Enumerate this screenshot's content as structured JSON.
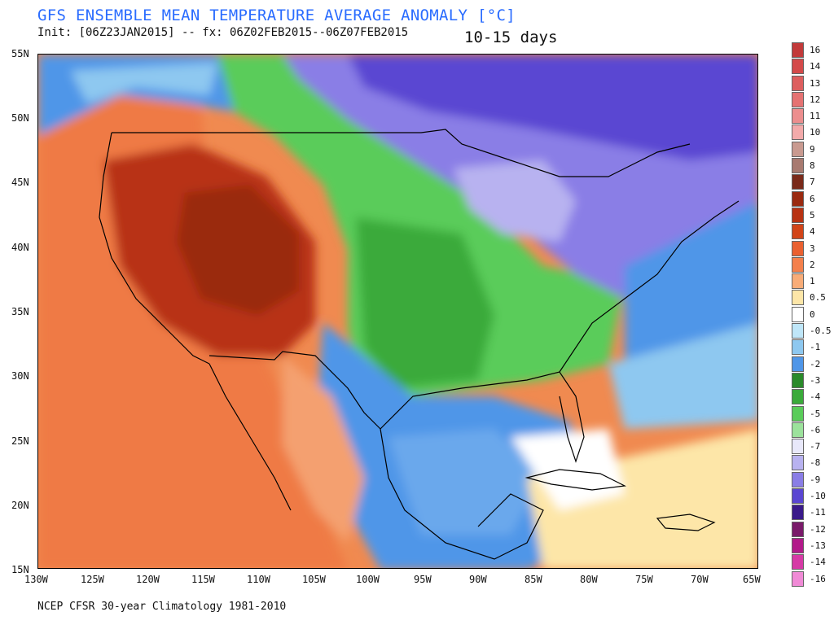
{
  "header": {
    "title": "GFS ENSEMBLE MEAN TEMPERATURE AVERAGE ANOMALY [°C]",
    "subtitle": "Init: [06Z23JAN2015] -- fx: 06Z02FEB2015--06Z07FEB2015",
    "period": "10-15 days"
  },
  "footer": {
    "text": "NCEP CFSR 30-year Climatology 1981-2010"
  },
  "map": {
    "lat_labels": [
      "55N",
      "50N",
      "45N",
      "40N",
      "35N",
      "30N",
      "25N",
      "20N",
      "15N"
    ],
    "lon_labels": [
      "130W",
      "125W",
      "120W",
      "115W",
      "110W",
      "105W",
      "100W",
      "95W",
      "90W",
      "85W",
      "80W",
      "75W",
      "70W",
      "65W"
    ],
    "lat_range": [
      15,
      55
    ],
    "lon_range": [
      -130,
      -65
    ]
  },
  "legend": {
    "items": [
      {
        "label": "16",
        "color": "#c23a3a"
      },
      {
        "label": "14",
        "color": "#d44a4a"
      },
      {
        "label": "13",
        "color": "#dd5e5e"
      },
      {
        "label": "12",
        "color": "#e57272"
      },
      {
        "label": "11",
        "color": "#ec8e8e"
      },
      {
        "label": "10",
        "color": "#f3aaaa"
      },
      {
        "label": "9",
        "color": "#c99a90"
      },
      {
        "label": "8",
        "color": "#a87a70"
      },
      {
        "label": "7",
        "color": "#7a2a1a"
      },
      {
        "label": "6",
        "color": "#9a2a10"
      },
      {
        "label": "5",
        "color": "#b83212"
      },
      {
        "label": "4",
        "color": "#d24418"
      },
      {
        "label": "3",
        "color": "#ea6030"
      },
      {
        "label": "2",
        "color": "#f4804c"
      },
      {
        "label": "1",
        "color": "#f8ac78"
      },
      {
        "label": "0.5",
        "color": "#fde6a8"
      },
      {
        "label": "0",
        "color": "#ffffff"
      },
      {
        "label": "-0.5",
        "color": "#bfe6f8"
      },
      {
        "label": "-1",
        "color": "#8ec8f0"
      },
      {
        "label": "-2",
        "color": "#4f96e8"
      },
      {
        "label": "-3",
        "color": "#2a8a2a"
      },
      {
        "label": "-4",
        "color": "#3aaa3a"
      },
      {
        "label": "-5",
        "color": "#5acc5a"
      },
      {
        "label": "-6",
        "color": "#9ce29c"
      },
      {
        "label": "-7",
        "color": "#e8e8fa"
      },
      {
        "label": "-8",
        "color": "#b8b2f0"
      },
      {
        "label": "-9",
        "color": "#8a7ee6"
      },
      {
        "label": "-10",
        "color": "#5a46d2"
      },
      {
        "label": "-11",
        "color": "#3a1a8a"
      },
      {
        "label": "-12",
        "color": "#7a1a6a"
      },
      {
        "label": "-13",
        "color": "#b21a8a"
      },
      {
        "label": "-14",
        "color": "#d63aa6"
      },
      {
        "label": "-16",
        "color": "#f08ad6"
      }
    ]
  }
}
